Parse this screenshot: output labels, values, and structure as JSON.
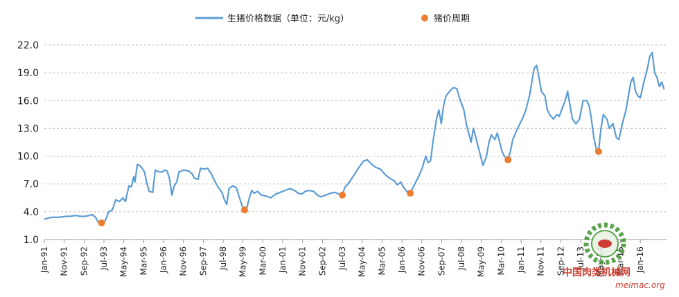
{
  "chart_data": {
    "type": "line",
    "xlabel": "",
    "ylabel": "",
    "ylim": [
      1.0,
      22.0
    ],
    "y_ticks": [
      "22.0",
      "19.0",
      "16.0",
      "13.0",
      "10.0",
      "7.0",
      "4.0",
      "1.0"
    ],
    "x_range": [
      1991.0,
      2017.1
    ],
    "x_ticks": [
      {
        "label": "Jan-91",
        "t": 1991.0
      },
      {
        "label": "Nov-91",
        "t": 1991.83
      },
      {
        "label": "Sep-92",
        "t": 1992.67
      },
      {
        "label": "Jul-93",
        "t": 1993.5
      },
      {
        "label": "May-94",
        "t": 1994.33
      },
      {
        "label": "Mar-95",
        "t": 1995.17
      },
      {
        "label": "Jan-96",
        "t": 1996.0
      },
      {
        "label": "Nov-96",
        "t": 1996.83
      },
      {
        "label": "Sep-97",
        "t": 1997.67
      },
      {
        "label": "Jul-98",
        "t": 1998.5
      },
      {
        "label": "May-99",
        "t": 1999.33
      },
      {
        "label": "Mar-00",
        "t": 2000.17
      },
      {
        "label": "Jan-01",
        "t": 2001.0
      },
      {
        "label": "Nov-01",
        "t": 2001.83
      },
      {
        "label": "Sep-02",
        "t": 2002.67
      },
      {
        "label": "Jul-03",
        "t": 2003.5
      },
      {
        "label": "May-04",
        "t": 2004.33
      },
      {
        "label": "Mar-05",
        "t": 2005.17
      },
      {
        "label": "Jan-06",
        "t": 2006.0
      },
      {
        "label": "Nov-06",
        "t": 2006.83
      },
      {
        "label": "Sep-07",
        "t": 2007.67
      },
      {
        "label": "Jul-08",
        "t": 2008.5
      },
      {
        "label": "May-09",
        "t": 2009.33
      },
      {
        "label": "Mar-10",
        "t": 2010.17
      },
      {
        "label": "Jan-11",
        "t": 2011.0
      },
      {
        "label": "Nov-11",
        "t": 2011.83
      },
      {
        "label": "Sep-12",
        "t": 2012.67
      },
      {
        "label": "Jul-13",
        "t": 2013.5
      },
      {
        "label": "May-14",
        "t": 2014.33
      },
      {
        "label": "Mar-15",
        "t": 2015.17
      },
      {
        "label": "Jan-16",
        "t": 2016.0
      }
    ],
    "series": [
      {
        "name": "生猪价格数据（单位：元/kg）",
        "type": "line",
        "color": "#5b9bd5",
        "points": [
          [
            1991.0,
            3.2
          ],
          [
            1991.3,
            3.4
          ],
          [
            1991.6,
            3.4
          ],
          [
            1991.9,
            3.5
          ],
          [
            1992.1,
            3.5
          ],
          [
            1992.3,
            3.6
          ],
          [
            1992.5,
            3.5
          ],
          [
            1992.7,
            3.5
          ],
          [
            1992.9,
            3.6
          ],
          [
            1993.0,
            3.7
          ],
          [
            1993.15,
            3.4
          ],
          [
            1993.25,
            2.9
          ],
          [
            1993.4,
            2.8
          ],
          [
            1993.55,
            3.0
          ],
          [
            1993.7,
            4.0
          ],
          [
            1993.85,
            4.2
          ],
          [
            1994.0,
            5.3
          ],
          [
            1994.15,
            5.1
          ],
          [
            1994.3,
            5.5
          ],
          [
            1994.4,
            5.1
          ],
          [
            1994.55,
            6.8
          ],
          [
            1994.65,
            6.7
          ],
          [
            1994.75,
            7.8
          ],
          [
            1994.8,
            7.2
          ],
          [
            1994.9,
            9.1
          ],
          [
            1995.0,
            9.0
          ],
          [
            1995.1,
            8.7
          ],
          [
            1995.2,
            8.3
          ],
          [
            1995.3,
            7.1
          ],
          [
            1995.4,
            6.2
          ],
          [
            1995.55,
            6.1
          ],
          [
            1995.65,
            8.5
          ],
          [
            1995.8,
            8.3
          ],
          [
            1995.95,
            8.3
          ],
          [
            1996.05,
            8.5
          ],
          [
            1996.15,
            8.4
          ],
          [
            1996.25,
            7.6
          ],
          [
            1996.35,
            5.8
          ],
          [
            1996.45,
            6.8
          ],
          [
            1996.55,
            7.2
          ],
          [
            1996.65,
            8.3
          ],
          [
            1996.85,
            8.5
          ],
          [
            1997.05,
            8.4
          ],
          [
            1997.2,
            8.1
          ],
          [
            1997.3,
            7.6
          ],
          [
            1997.45,
            7.5
          ],
          [
            1997.55,
            8.7
          ],
          [
            1997.7,
            8.6
          ],
          [
            1997.85,
            8.7
          ],
          [
            1998.0,
            8.1
          ],
          [
            1998.15,
            7.3
          ],
          [
            1998.3,
            6.6
          ],
          [
            1998.45,
            6.1
          ],
          [
            1998.55,
            5.3
          ],
          [
            1998.65,
            4.8
          ],
          [
            1998.75,
            6.5
          ],
          [
            1998.9,
            6.8
          ],
          [
            1999.05,
            6.6
          ],
          [
            1999.15,
            5.8
          ],
          [
            1999.3,
            4.6
          ],
          [
            1999.4,
            4.2
          ],
          [
            1999.5,
            4.5
          ],
          [
            1999.6,
            5.5
          ],
          [
            1999.7,
            6.3
          ],
          [
            1999.8,
            6.0
          ],
          [
            1999.95,
            6.2
          ],
          [
            2000.1,
            5.8
          ],
          [
            2000.3,
            5.7
          ],
          [
            2000.5,
            5.5
          ],
          [
            2000.7,
            5.9
          ],
          [
            2000.9,
            6.1
          ],
          [
            2001.1,
            6.3
          ],
          [
            2001.3,
            6.5
          ],
          [
            2001.5,
            6.3
          ],
          [
            2001.65,
            6.0
          ],
          [
            2001.8,
            5.9
          ],
          [
            2001.95,
            6.2
          ],
          [
            2002.1,
            6.3
          ],
          [
            2002.3,
            6.2
          ],
          [
            2002.45,
            5.8
          ],
          [
            2002.6,
            5.6
          ],
          [
            2002.8,
            5.8
          ],
          [
            2003.0,
            6.0
          ],
          [
            2003.2,
            6.1
          ],
          [
            2003.35,
            5.9
          ],
          [
            2003.5,
            5.8
          ],
          [
            2003.6,
            6.6
          ],
          [
            2003.8,
            7.2
          ],
          [
            2004.0,
            8.0
          ],
          [
            2004.2,
            8.8
          ],
          [
            2004.4,
            9.5
          ],
          [
            2004.55,
            9.6
          ],
          [
            2004.7,
            9.2
          ],
          [
            2004.9,
            8.8
          ],
          [
            2005.1,
            8.6
          ],
          [
            2005.3,
            8.0
          ],
          [
            2005.5,
            7.6
          ],
          [
            2005.7,
            7.3
          ],
          [
            2005.8,
            6.9
          ],
          [
            2005.95,
            7.2
          ],
          [
            2006.05,
            6.7
          ],
          [
            2006.2,
            6.2
          ],
          [
            2006.35,
            6.0
          ],
          [
            2006.5,
            6.8
          ],
          [
            2006.7,
            7.8
          ],
          [
            2006.85,
            8.7
          ],
          [
            2007.0,
            10.0
          ],
          [
            2007.1,
            9.3
          ],
          [
            2007.2,
            9.5
          ],
          [
            2007.3,
            11.5
          ],
          [
            2007.45,
            14.0
          ],
          [
            2007.55,
            15.0
          ],
          [
            2007.65,
            13.5
          ],
          [
            2007.75,
            15.5
          ],
          [
            2007.85,
            16.5
          ],
          [
            2008.0,
            17.0
          ],
          [
            2008.15,
            17.4
          ],
          [
            2008.3,
            17.3
          ],
          [
            2008.45,
            16.0
          ],
          [
            2008.6,
            15.0
          ],
          [
            2008.7,
            13.5
          ],
          [
            2008.8,
            12.5
          ],
          [
            2008.9,
            11.5
          ],
          [
            2009.0,
            13.0
          ],
          [
            2009.1,
            12.0
          ],
          [
            2009.25,
            10.5
          ],
          [
            2009.4,
            9.0
          ],
          [
            2009.55,
            10.0
          ],
          [
            2009.65,
            11.5
          ],
          [
            2009.75,
            12.3
          ],
          [
            2009.9,
            11.8
          ],
          [
            2010.0,
            12.5
          ],
          [
            2010.1,
            11.5
          ],
          [
            2010.2,
            10.5
          ],
          [
            2010.3,
            10.0
          ],
          [
            2010.45,
            9.6
          ],
          [
            2010.55,
            10.5
          ],
          [
            2010.65,
            11.8
          ],
          [
            2010.8,
            12.7
          ],
          [
            2010.95,
            13.5
          ],
          [
            2011.05,
            14.0
          ],
          [
            2011.2,
            15.0
          ],
          [
            2011.35,
            16.5
          ],
          [
            2011.45,
            18.0
          ],
          [
            2011.55,
            19.5
          ],
          [
            2011.65,
            19.8
          ],
          [
            2011.75,
            18.5
          ],
          [
            2011.85,
            17.0
          ],
          [
            2012.0,
            16.5
          ],
          [
            2012.1,
            15.0
          ],
          [
            2012.2,
            14.5
          ],
          [
            2012.35,
            14.0
          ],
          [
            2012.5,
            14.5
          ],
          [
            2012.6,
            14.3
          ],
          [
            2012.7,
            15.0
          ],
          [
            2012.85,
            16.0
          ],
          [
            2012.95,
            17.0
          ],
          [
            2013.05,
            15.5
          ],
          [
            2013.15,
            14.0
          ],
          [
            2013.3,
            13.5
          ],
          [
            2013.45,
            14.0
          ],
          [
            2013.6,
            16.0
          ],
          [
            2013.75,
            16.0
          ],
          [
            2013.85,
            15.5
          ],
          [
            2013.95,
            14.0
          ],
          [
            2014.05,
            12.0
          ],
          [
            2014.15,
            10.8
          ],
          [
            2014.25,
            10.5
          ],
          [
            2014.35,
            13.0
          ],
          [
            2014.45,
            14.5
          ],
          [
            2014.6,
            14.0
          ],
          [
            2014.7,
            13.0
          ],
          [
            2014.85,
            13.5
          ],
          [
            2015.0,
            12.0
          ],
          [
            2015.1,
            11.8
          ],
          [
            2015.25,
            13.5
          ],
          [
            2015.4,
            15.0
          ],
          [
            2015.5,
            16.5
          ],
          [
            2015.6,
            18.0
          ],
          [
            2015.7,
            18.5
          ],
          [
            2015.8,
            17.0
          ],
          [
            2015.9,
            16.5
          ],
          [
            2016.0,
            16.3
          ],
          [
            2016.15,
            18.0
          ],
          [
            2016.3,
            19.5
          ],
          [
            2016.4,
            20.8
          ],
          [
            2016.5,
            21.2
          ],
          [
            2016.6,
            19.0
          ],
          [
            2016.7,
            18.5
          ],
          [
            2016.8,
            17.5
          ],
          [
            2016.9,
            18.0
          ],
          [
            2017.0,
            17.2
          ]
        ]
      },
      {
        "name": "猪价周期",
        "type": "scatter",
        "color": "#ed7d31",
        "points": [
          [
            1993.4,
            2.8
          ],
          [
            1999.4,
            4.2
          ],
          [
            2003.5,
            5.8
          ],
          [
            2006.35,
            6.0
          ],
          [
            2010.45,
            9.6
          ],
          [
            2014.25,
            10.5
          ]
        ]
      }
    ],
    "grid": true,
    "legend": "top-center"
  },
  "watermark": {
    "cn_text": "中国肉类机械网",
    "url": "meimac.org"
  }
}
